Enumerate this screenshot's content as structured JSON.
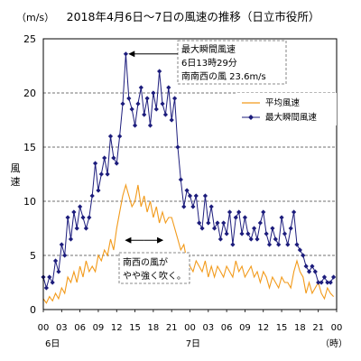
{
  "chart_data": {
    "type": "line",
    "title": "2018年4月6日～7日の風速の推移（日立市役所）",
    "y_unit_label": "（m/s）",
    "ylabel": "風速",
    "ylim": [
      0,
      25
    ],
    "yticks": [
      "0",
      "5",
      "10",
      "15",
      "20",
      "25"
    ],
    "xlim": [
      0,
      48
    ],
    "xticks": [
      "00",
      "03",
      "06",
      "09",
      "12",
      "15",
      "18",
      "21",
      "00",
      "03",
      "06",
      "09",
      "12",
      "15",
      "18",
      "21",
      "00"
    ],
    "day_labels": [
      {
        "text": "6日",
        "hour": 1.5
      },
      {
        "text": "7日",
        "hour": 24.5
      }
    ],
    "x_unit_label": "（時）",
    "grid": "horizontal-dashed",
    "legend_position": "top-right",
    "colors": {
      "average": "#f29a1a",
      "maximum": "#1c1c7c"
    },
    "series": [
      {
        "name": "平均風速",
        "key": "average",
        "x": [
          0,
          0.5,
          1,
          1.5,
          2,
          2.5,
          3,
          3.5,
          4,
          4.5,
          5,
          5.5,
          6,
          6.5,
          7,
          7.5,
          8,
          8.5,
          9,
          9.5,
          10,
          10.5,
          11,
          11.5,
          12,
          12.5,
          13,
          13.5,
          14,
          14.5,
          15,
          15.5,
          16,
          16.5,
          17,
          17.5,
          18,
          18.5,
          19,
          19.5,
          20,
          20.5,
          21,
          21.5,
          22,
          22.5,
          23,
          23.5,
          24,
          24.5,
          25,
          25.5,
          26,
          26.5,
          27,
          27.5,
          28,
          28.5,
          29,
          29.5,
          30,
          30.5,
          31,
          31.5,
          32,
          32.5,
          33,
          33.5,
          34,
          34.5,
          35,
          35.5,
          36,
          36.5,
          37,
          37.5,
          38,
          38.5,
          39,
          39.5,
          40,
          40.5,
          41,
          41.5,
          42,
          42.5,
          43,
          43.5,
          44,
          44.5,
          45,
          45.5,
          46,
          46.5,
          47,
          47.5
        ],
        "values": [
          1.0,
          0.6,
          1.2,
          0.8,
          1.5,
          1.0,
          2.0,
          1.5,
          3.0,
          2.5,
          3.5,
          2.5,
          4.0,
          3.0,
          4.5,
          3.5,
          4.0,
          3.5,
          5.0,
          4.5,
          5.5,
          5.0,
          6.5,
          5.5,
          7.5,
          9.0,
          10.5,
          11.5,
          10.5,
          9.5,
          10.0,
          11.5,
          9.5,
          10.5,
          9.0,
          10.0,
          8.5,
          9.5,
          8.0,
          9.0,
          8.0,
          8.5,
          8.5,
          7.5,
          6.5,
          5.5,
          6.0,
          4.5,
          4.0,
          3.5,
          4.5,
          4.0,
          3.5,
          4.5,
          3.0,
          4.0,
          3.0,
          4.0,
          3.5,
          3.0,
          4.0,
          3.5,
          3.0,
          4.5,
          3.5,
          4.0,
          3.0,
          3.5,
          4.0,
          3.0,
          3.5,
          2.5,
          3.5,
          3.0,
          2.0,
          3.0,
          2.5,
          2.0,
          3.0,
          2.5,
          2.5,
          2.0,
          3.5,
          4.5,
          3.5,
          3.0,
          1.5,
          2.5,
          1.5,
          2.0,
          2.5,
          1.5,
          1.0,
          2.0,
          1.5,
          1.2
        ]
      },
      {
        "name": "最大瞬間風速",
        "key": "maximum",
        "x": [
          0,
          0.5,
          1,
          1.5,
          2,
          2.5,
          3,
          3.5,
          4,
          4.5,
          5,
          5.5,
          6,
          6.5,
          7,
          7.5,
          8,
          8.5,
          9,
          9.5,
          10,
          10.5,
          11,
          11.5,
          12,
          12.5,
          13,
          13.5,
          14,
          14.5,
          15,
          15.5,
          16,
          16.5,
          17,
          17.5,
          18,
          18.5,
          19,
          19.5,
          20,
          20.5,
          21,
          21.5,
          22,
          22.5,
          23,
          23.5,
          24,
          24.5,
          25,
          25.5,
          26,
          26.5,
          27,
          27.5,
          28,
          28.5,
          29,
          29.5,
          30,
          30.5,
          31,
          31.5,
          32,
          32.5,
          33,
          33.5,
          34,
          34.5,
          35,
          35.5,
          36,
          36.5,
          37,
          37.5,
          38,
          38.5,
          39,
          39.5,
          40,
          40.5,
          41,
          41.5,
          42,
          42.5,
          43,
          43.5,
          44,
          44.5,
          45,
          45.5,
          46,
          46.5,
          47,
          47.5
        ],
        "values": [
          3.0,
          2.0,
          3.0,
          2.5,
          4.5,
          3.5,
          6.0,
          5.0,
          8.5,
          6.5,
          9.0,
          7.5,
          9.5,
          8.5,
          7.5,
          8.5,
          10.5,
          13.5,
          11.0,
          12.5,
          14.0,
          12.5,
          16.0,
          14.0,
          13.5,
          16.0,
          19.0,
          23.6,
          19.5,
          18.5,
          17.0,
          19.0,
          20.5,
          18.0,
          19.5,
          17.0,
          20.0,
          18.5,
          22.0,
          19.0,
          18.0,
          20.5,
          17.5,
          19.5,
          15.0,
          12.0,
          9.5,
          11.0,
          10.5,
          9.5,
          10.5,
          8.0,
          7.5,
          10.5,
          8.0,
          9.5,
          7.5,
          8.0,
          6.5,
          8.0,
          7.0,
          9.0,
          6.0,
          8.5,
          9.0,
          7.0,
          8.5,
          7.0,
          6.5,
          7.5,
          6.5,
          8.0,
          9.0,
          7.0,
          6.0,
          7.5,
          6.5,
          6.0,
          8.5,
          7.0,
          6.0,
          7.5,
          9.0,
          6.0,
          5.5,
          5.0,
          4.0,
          3.5,
          4.0,
          3.5,
          2.5,
          2.5,
          3.0,
          2.5,
          2.5,
          3.0
        ]
      }
    ],
    "annotations": {
      "peak": {
        "lines": [
          "最大瞬間風速",
          "6日13時29分",
          "南南西の風 23.6m/s"
        ],
        "point": {
          "hour": 13.48,
          "value": 23.6
        }
      },
      "note": {
        "lines": [
          "南西の風が",
          "やや強く吹く。"
        ],
        "arrow_from_hour": 13.5,
        "arrow_to_hour": 19.5,
        "arrow_value": 6.4
      }
    }
  }
}
